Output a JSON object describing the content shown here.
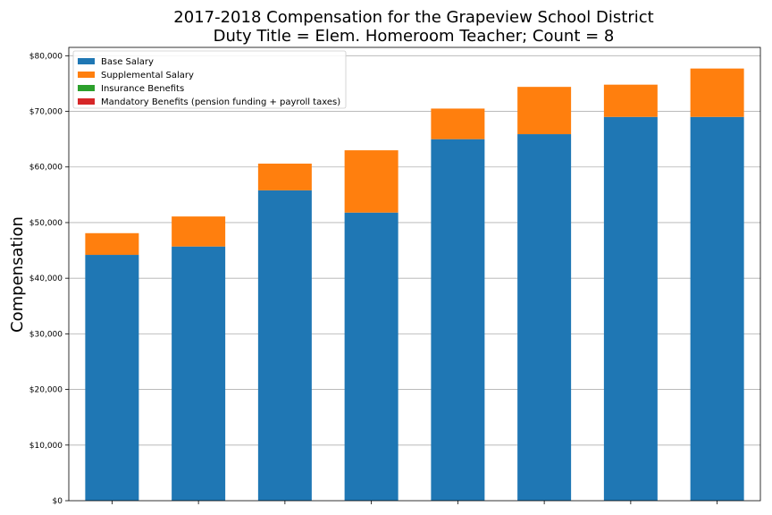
{
  "chart_data": {
    "type": "bar",
    "stacked": true,
    "title": [
      "2017-2018 Compensation for the Grapeview School District",
      "Duty Title = Elem. Homeroom Teacher; Count = 8"
    ],
    "xlabel": "",
    "ylabel": "Compensation",
    "categories": [
      "",
      "",
      "",
      "",
      "",
      "",
      "",
      ""
    ],
    "series": [
      {
        "name": "Base Salary",
        "color": "#1f77b4",
        "values": [
          44200,
          45700,
          55800,
          51800,
          65000,
          65900,
          69000,
          69000
        ]
      },
      {
        "name": "Supplemental Salary",
        "color": "#ff7f0e",
        "values": [
          3900,
          5400,
          4800,
          11200,
          5500,
          8500,
          5800,
          8700
        ]
      },
      {
        "name": "Insurance Benefits",
        "color": "#2ca02c",
        "values": [
          0,
          0,
          0,
          0,
          0,
          0,
          0,
          0
        ]
      },
      {
        "name": "Mandatory Benefits (pension funding + payroll taxes)",
        "color": "#d62728",
        "values": [
          0,
          0,
          0,
          0,
          0,
          0,
          0,
          0
        ]
      }
    ],
    "ylim": [
      0,
      81500
    ],
    "yticks": [
      0,
      10000,
      20000,
      30000,
      40000,
      50000,
      60000,
      70000,
      80000
    ],
    "ytick_labels": [
      "$0",
      "$10,000",
      "$20,000",
      "$30,000",
      "$40,000",
      "$50,000",
      "$60,000",
      "$70,000",
      "$80,000"
    ],
    "grid": "y",
    "legend": "top-left"
  }
}
